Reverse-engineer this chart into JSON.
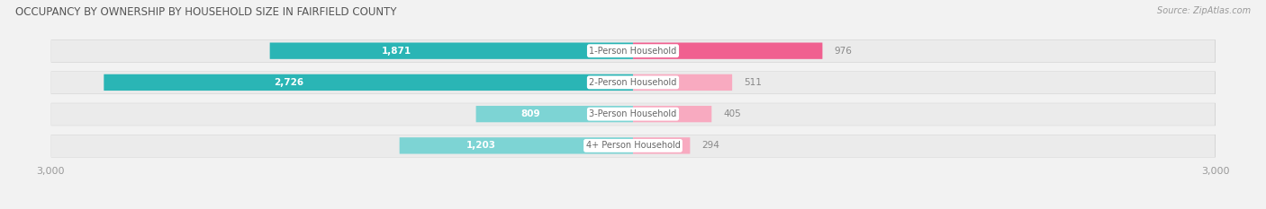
{
  "title": "OCCUPANCY BY OWNERSHIP BY HOUSEHOLD SIZE IN FAIRFIELD COUNTY",
  "source": "Source: ZipAtlas.com",
  "categories": [
    "1-Person Household",
    "2-Person Household",
    "3-Person Household",
    "4+ Person Household"
  ],
  "owner_values": [
    1871,
    2726,
    809,
    1203
  ],
  "renter_values": [
    976,
    511,
    405,
    294
  ],
  "max_scale": 3000,
  "owner_color_dark": "#2ab5b5",
  "owner_color_light": "#7dd4d4",
  "renter_color_dark": "#f06090",
  "renter_color_light": "#f8aac0",
  "row_bg_color": "#e8e8e8",
  "row_shadow_color": "#cccccc",
  "axis_label_color": "#999999",
  "title_color": "#555555",
  "source_color": "#999999",
  "owner_color_legend": "#4dbdbd",
  "renter_color_legend": "#f07aa0",
  "value_label_outside_color": "#888888",
  "value_label_inside_color": "#ffffff",
  "center_label_color": "#666666",
  "figsize": [
    14.06,
    2.33
  ],
  "dpi": 100
}
